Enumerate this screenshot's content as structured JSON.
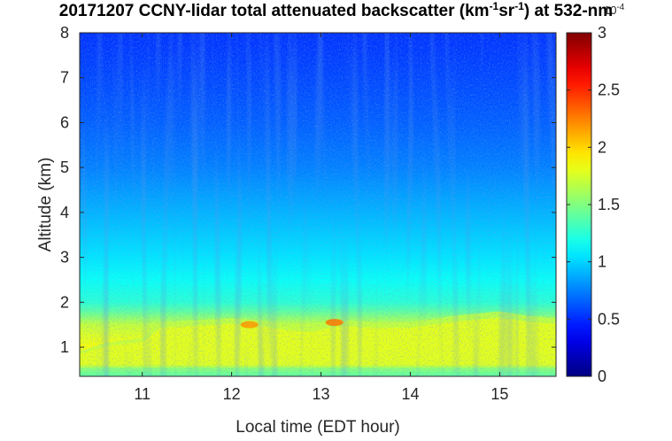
{
  "chart_data": {
    "type": "heatmap",
    "title_parts": {
      "before_unit": "20171207 CCNY-lidar total attenuated backscatter (km",
      "exp1": "-1",
      "mid": "sr",
      "exp2": "-1",
      "after_unit": ") at 532-nm"
    },
    "xlabel": "Local time (EDT hour)",
    "ylabel": "Altitude (km)",
    "xlim": [
      10.3,
      15.63
    ],
    "ylim": [
      0.35,
      8
    ],
    "x_ticks": [
      11,
      12,
      13,
      14,
      15
    ],
    "y_ticks": [
      1,
      2,
      3,
      4,
      5,
      6,
      7,
      8
    ],
    "x_tick_labels": [
      "11",
      "12",
      "13",
      "14",
      "15"
    ],
    "y_tick_labels": [
      "1",
      "2",
      "3",
      "4",
      "5",
      "6",
      "7",
      "8"
    ],
    "colorbar": {
      "colormap": "jet",
      "range": [
        0,
        3
      ],
      "ticks": [
        0,
        0.5,
        1,
        1.5,
        2,
        2.5,
        3
      ],
      "tick_labels": [
        "0",
        "0.5",
        "1",
        "1.5",
        "2",
        "2.5",
        "3"
      ],
      "scale_base": "10",
      "scale_exponent": "-4"
    },
    "profile": {
      "altitude_km": [
        0.35,
        0.6,
        1.0,
        1.2,
        1.5,
        1.8,
        2.0,
        2.5,
        3.0,
        4.0,
        5.0,
        6.0,
        7.0,
        8.0
      ],
      "backscatter_x1e4": [
        1.4,
        1.6,
        1.85,
        1.8,
        1.7,
        1.4,
        1.25,
        1.15,
        1.05,
        0.9,
        0.75,
        0.65,
        0.58,
        0.52
      ]
    },
    "boundary_layer_top": {
      "time_hr": [
        10.3,
        10.6,
        11.0,
        11.2,
        11.6,
        12.0,
        12.3,
        12.6,
        12.9,
        13.2,
        13.6,
        14.0,
        14.5,
        15.0,
        15.3,
        15.63
      ],
      "altitude_km": [
        0.9,
        1.1,
        1.2,
        1.55,
        1.6,
        1.65,
        1.6,
        1.5,
        1.45,
        1.6,
        1.55,
        1.55,
        1.7,
        1.8,
        1.7,
        1.65
      ]
    },
    "features": [
      {
        "time_hr": 12.2,
        "altitude_km": 1.5,
        "value_x1e4": 2.2
      },
      {
        "time_hr": 13.15,
        "altitude_km": 1.55,
        "value_x1e4": 2.3
      }
    ]
  }
}
